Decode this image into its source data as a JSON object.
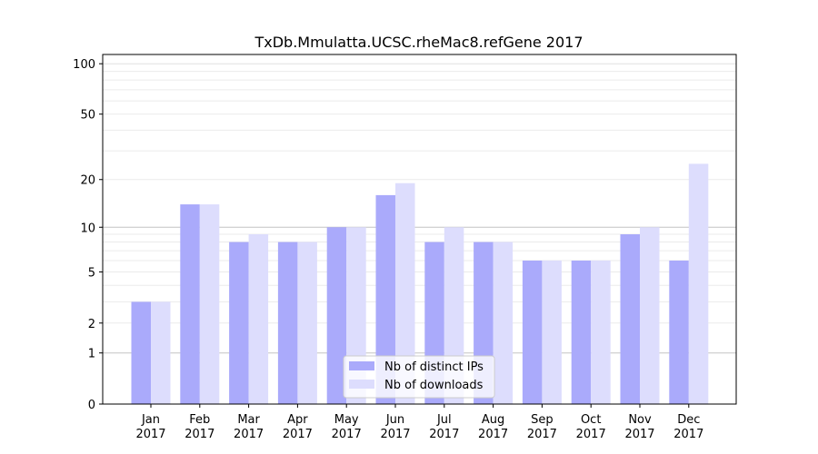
{
  "chart_data": {
    "type": "bar",
    "title": "TxDb.Mmulatta.UCSC.rheMac8.refGene 2017",
    "xlabel": "",
    "ylabel": "",
    "yscale": "log(1+y)",
    "ylim": [
      0,
      110
    ],
    "yticks": [
      0,
      1,
      2,
      5,
      10,
      20,
      50,
      100
    ],
    "ytick_labels": [
      "0",
      "1",
      "2",
      "5",
      "10",
      "20",
      "50",
      "100"
    ],
    "categories": [
      "Jan\n2017",
      "Feb\n2017",
      "Mar\n2017",
      "Apr\n2017",
      "May\n2017",
      "Jun\n2017",
      "Jul\n2017",
      "Aug\n2017",
      "Sep\n2017",
      "Oct\n2017",
      "Nov\n2017",
      "Dec\n2017"
    ],
    "series": [
      {
        "name": "Nb of distinct IPs",
        "color": "#aaaafb",
        "values": [
          3,
          14,
          8,
          8,
          10,
          16,
          8,
          8,
          6,
          6,
          9,
          6
        ]
      },
      {
        "name": "Nb of downloads",
        "color": "#ddddfd",
        "values": [
          3,
          14,
          9,
          8,
          10,
          19,
          10,
          8,
          6,
          6,
          10,
          25
        ]
      }
    ],
    "legend": "bottom-center",
    "grid": true
  }
}
